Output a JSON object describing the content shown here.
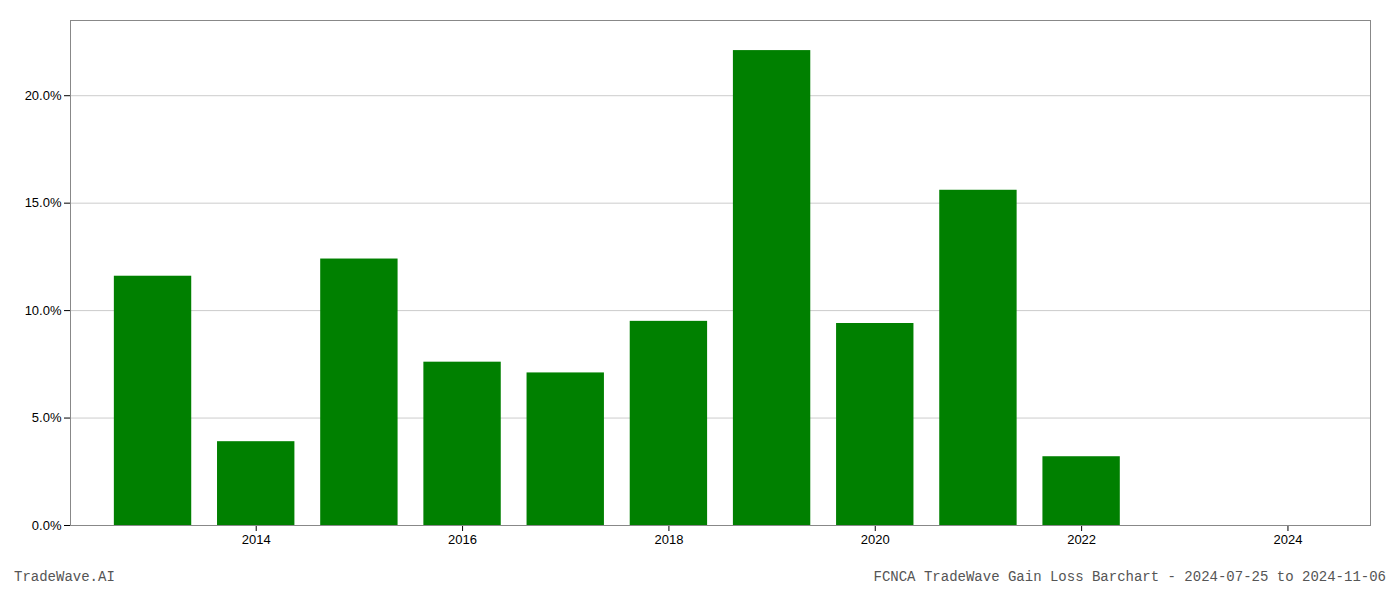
{
  "chart_data": {
    "type": "bar",
    "x": [
      2013,
      2014,
      2015,
      2016,
      2017,
      2018,
      2019,
      2020,
      2021,
      2022,
      2023
    ],
    "values": [
      0.116,
      0.039,
      0.124,
      0.076,
      0.071,
      0.095,
      0.221,
      0.094,
      0.156,
      0.032,
      0.0
    ],
    "color": "#008000",
    "xlim": [
      2012.2,
      2024.8
    ],
    "xticks": [
      2014,
      2016,
      2018,
      2020,
      2022,
      2024
    ],
    "ylim": [
      0.0,
      0.235
    ],
    "yticks": [
      {
        "value": 0.0,
        "label": "0.0%"
      },
      {
        "value": 0.05,
        "label": "5.0%"
      },
      {
        "value": 0.1,
        "label": "10.0%"
      },
      {
        "value": 0.15,
        "label": "15.0%"
      },
      {
        "value": 0.2,
        "label": "20.0%"
      }
    ],
    "grid": true,
    "annotations": [
      "TradeWave.AI",
      "FCNCA TradeWave Gain Loss Barchart - 2024-07-25 to 2024-11-06"
    ]
  }
}
